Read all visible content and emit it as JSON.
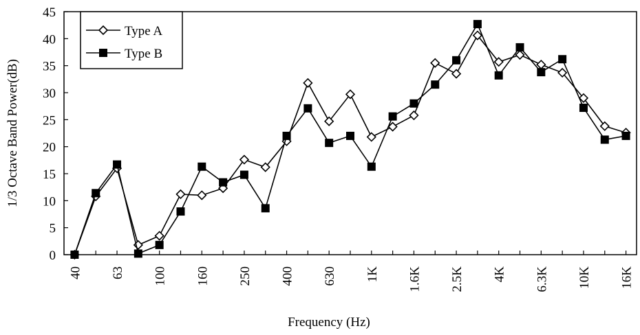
{
  "chart_data": {
    "type": "line",
    "xlabel": "Frequency (Hz)",
    "ylabel": "1/3 Octave Band Power(dB)",
    "categories": [
      "40",
      null,
      "63",
      null,
      "100",
      null,
      "160",
      null,
      "250",
      null,
      "400",
      null,
      "630",
      null,
      "1K",
      null,
      "1.6K",
      null,
      "2.5K",
      null,
      "4K",
      null,
      "6.3K",
      null,
      "10K",
      null,
      "16K"
    ],
    "series": [
      {
        "name": "Type A",
        "color": "#000000",
        "marker": "diamond",
        "values": [
          0,
          10.8,
          16,
          1.8,
          3.5,
          11.2,
          11,
          12.3,
          17.6,
          16.2,
          21,
          31.8,
          24.7,
          29.7,
          21.8,
          23.7,
          25.8,
          35.5,
          33.5,
          40.6,
          35.7,
          37,
          35.2,
          33.7,
          29,
          23.8,
          22.6
        ]
      },
      {
        "name": "Type B",
        "color": "#000000",
        "marker": "square",
        "values": [
          0,
          11.4,
          16.7,
          0.2,
          1.8,
          8,
          16.3,
          13.4,
          14.8,
          8.6,
          22,
          27.1,
          20.7,
          22,
          16.3,
          25.6,
          28,
          31.5,
          36,
          42.7,
          33.2,
          38.4,
          33.8,
          36.2,
          27.2,
          21.3,
          22
        ]
      }
    ],
    "ylim": [
      0,
      45
    ],
    "yticks": [
      0,
      5,
      10,
      15,
      20,
      25,
      30,
      35,
      40,
      45
    ],
    "grid": false,
    "legend": "upper left"
  }
}
